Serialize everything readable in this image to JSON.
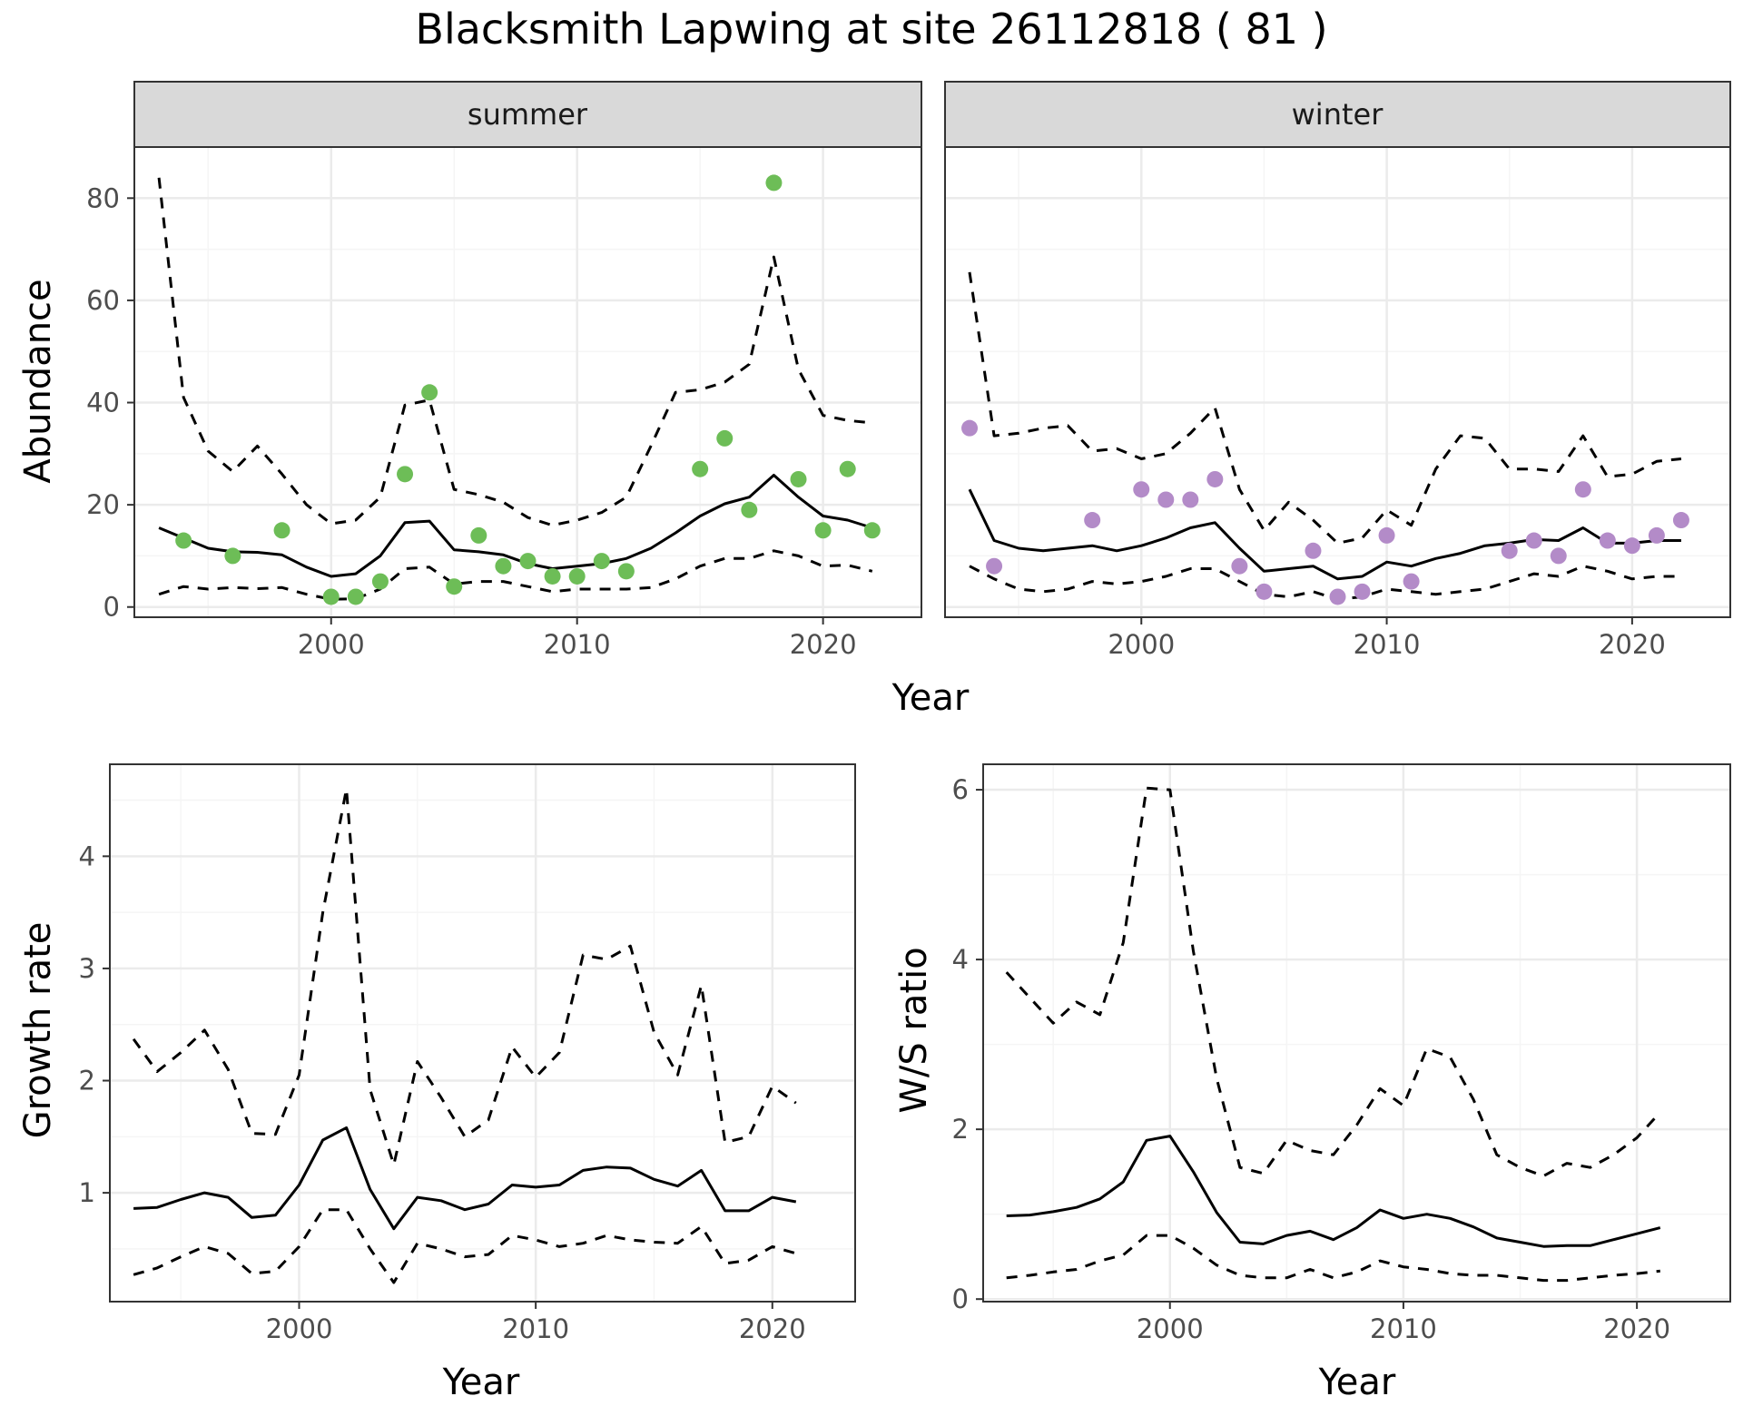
{
  "title": "Blacksmith Lapwing at site 26112818 ( 81 )",
  "colors": {
    "summer_points": "#6dbd57",
    "winter_points": "#b38bc8",
    "line": "#000000",
    "grid_major": "#ebebeb",
    "grid_minor": "#f5f5f5",
    "strip_fill": "#d9d9d9",
    "panel_border": "#333333"
  },
  "chart_data": [
    {
      "type": "line",
      "facet": "summer",
      "shared_xlabel": "Year",
      "ylabel": "Abundance",
      "xlim": [
        1992,
        2024
      ],
      "ylim": [
        -2,
        90
      ],
      "xticks": [
        2000,
        2010,
        2020
      ],
      "yticks": [
        0,
        20,
        40,
        60,
        80
      ],
      "grid": true,
      "series": [
        {
          "style": "solid",
          "x": [
            1993,
            1994,
            1995,
            1996,
            1997,
            1998,
            1999,
            2000,
            2001,
            2002,
            2003,
            2004,
            2005,
            2006,
            2007,
            2008,
            2009,
            2010,
            2011,
            2012,
            2013,
            2014,
            2015,
            2016,
            2017,
            2018,
            2019,
            2020,
            2021,
            2022
          ],
          "y": [
            15.5,
            13.5,
            11.5,
            10.8,
            10.7,
            10.2,
            7.8,
            6,
            6.5,
            10,
            16.5,
            16.8,
            11.2,
            10.8,
            10.2,
            8.5,
            7.5,
            8,
            8.5,
            9.5,
            11.5,
            14.5,
            17.8,
            20.2,
            21.5,
            25.8,
            21.5,
            17.8,
            17,
            15.5
          ]
        },
        {
          "style": "dashed",
          "x": [
            1993,
            1994,
            1995,
            1996,
            1997,
            1998,
            1999,
            2000,
            2001,
            2002,
            2003,
            2004,
            2005,
            2006,
            2007,
            2008,
            2009,
            2010,
            2011,
            2012,
            2013,
            2014,
            2015,
            2016,
            2017,
            2018,
            2019,
            2020,
            2021,
            2022
          ],
          "y": [
            84,
            41,
            30.5,
            26.5,
            31.5,
            26,
            20,
            16.3,
            17,
            21.5,
            39.5,
            40.5,
            23,
            22,
            20.5,
            17.5,
            16,
            17,
            18.5,
            21.5,
            31.5,
            42,
            42.5,
            44,
            47.5,
            68.5,
            46.5,
            37.5,
            36.5,
            36
          ]
        },
        {
          "style": "dashed",
          "x": [
            1993,
            1994,
            1995,
            1996,
            1997,
            1998,
            1999,
            2000,
            2001,
            2002,
            2003,
            2004,
            2005,
            2006,
            2007,
            2008,
            2009,
            2010,
            2011,
            2012,
            2013,
            2014,
            2015,
            2016,
            2017,
            2018,
            2019,
            2020,
            2021,
            2022
          ],
          "y": [
            2.5,
            4,
            3.5,
            3.8,
            3.6,
            3.8,
            2.5,
            1.5,
            1.6,
            3.5,
            7.5,
            7.8,
            4.5,
            5,
            5,
            4,
            3,
            3.5,
            3.5,
            3.5,
            3.8,
            5.5,
            8,
            9.5,
            9.5,
            11,
            10,
            8,
            8.2,
            7
          ]
        },
        {
          "style": "points",
          "x": [
            1994,
            1996,
            1998,
            2000,
            2001,
            2002,
            2003,
            2004,
            2005,
            2006,
            2007,
            2008,
            2009,
            2010,
            2011,
            2012,
            2015,
            2016,
            2017,
            2018,
            2019,
            2020,
            2021,
            2022
          ],
          "y": [
            13,
            10,
            15,
            2,
            2,
            5,
            26,
            42,
            4,
            14,
            8,
            9,
            6,
            6,
            9,
            7,
            27,
            33,
            19,
            83,
            25,
            15,
            27,
            15
          ]
        }
      ]
    },
    {
      "type": "line",
      "facet": "winter",
      "shared_xlabel": "Year",
      "ylabel": "",
      "xlim": [
        1992,
        2024
      ],
      "ylim": [
        -2,
        90
      ],
      "xticks": [
        2000,
        2010,
        2020
      ],
      "yticks": [
        0,
        20,
        40,
        60,
        80
      ],
      "grid": true,
      "series": [
        {
          "style": "solid",
          "x": [
            1993,
            1994,
            1995,
            1996,
            1997,
            1998,
            1999,
            2000,
            2001,
            2002,
            2003,
            2004,
            2005,
            2006,
            2007,
            2008,
            2009,
            2010,
            2011,
            2012,
            2013,
            2014,
            2015,
            2016,
            2017,
            2018,
            2019,
            2020,
            2021,
            2022
          ],
          "y": [
            23,
            13,
            11.5,
            11,
            11.5,
            12,
            11,
            12,
            13.5,
            15.5,
            16.5,
            11.5,
            7,
            7.5,
            8,
            5.5,
            6,
            8.8,
            8,
            9.5,
            10.5,
            12,
            12.5,
            13.2,
            13,
            15.5,
            12.5,
            12.5,
            13,
            13
          ]
        },
        {
          "style": "dashed",
          "x": [
            1993,
            1994,
            1995,
            1996,
            1997,
            1998,
            1999,
            2000,
            2001,
            2002,
            2003,
            2004,
            2005,
            2006,
            2007,
            2008,
            2009,
            2010,
            2011,
            2012,
            2013,
            2014,
            2015,
            2016,
            2017,
            2018,
            2019,
            2020,
            2021,
            2022
          ],
          "y": [
            65.5,
            33.5,
            34,
            35,
            35.5,
            30.5,
            31,
            29,
            30,
            34,
            39,
            23,
            15,
            20.5,
            17,
            12.5,
            13.5,
            19,
            16,
            27,
            33.5,
            33,
            27,
            27,
            26.5,
            33.5,
            25.5,
            26,
            28.5,
            29
          ]
        },
        {
          "style": "dashed",
          "x": [
            1993,
            1994,
            1995,
            1996,
            1997,
            1998,
            1999,
            2000,
            2001,
            2002,
            2003,
            2004,
            2005,
            2006,
            2007,
            2008,
            2009,
            2010,
            2011,
            2012,
            2013,
            2014,
            2015,
            2016,
            2017,
            2018,
            2019,
            2020,
            2021,
            2022
          ],
          "y": [
            8,
            5.5,
            3.5,
            3,
            3.5,
            5,
            4.5,
            5,
            6,
            7.5,
            7.5,
            5,
            2.5,
            2,
            3,
            1.5,
            2,
            3.5,
            3,
            2.5,
            3,
            3.5,
            5,
            6.5,
            6,
            8,
            7,
            5.5,
            6,
            6
          ]
        },
        {
          "style": "points",
          "x": [
            1993,
            1994,
            1998,
            2000,
            2001,
            2002,
            2003,
            2004,
            2005,
            2007,
            2008,
            2009,
            2010,
            2011,
            2015,
            2016,
            2017,
            2018,
            2019,
            2020,
            2021,
            2022
          ],
          "y": [
            35,
            8,
            17,
            23,
            21,
            21,
            25,
            8,
            3,
            11,
            2,
            3,
            14,
            5,
            11,
            13,
            10,
            23,
            13,
            12,
            14,
            17
          ]
        }
      ]
    },
    {
      "type": "line",
      "xlabel": "Year",
      "ylabel": "Growth rate",
      "xlim": [
        1992,
        2023.5
      ],
      "ylim": [
        0.03,
        4.82
      ],
      "xticks": [
        2000,
        2010,
        2020
      ],
      "yticks": [
        1,
        2,
        3,
        4
      ],
      "grid": true,
      "series": [
        {
          "style": "solid",
          "x": [
            1993,
            1994,
            1995,
            1996,
            1997,
            1998,
            1999,
            2000,
            2001,
            2002,
            2003,
            2004,
            2005,
            2006,
            2007,
            2008,
            2009,
            2010,
            2011,
            2012,
            2013,
            2014,
            2015,
            2016,
            2017,
            2018,
            2019,
            2020,
            2021
          ],
          "y": [
            0.86,
            0.87,
            0.94,
            1,
            0.96,
            0.78,
            0.8,
            1.07,
            1.47,
            1.58,
            1.03,
            0.68,
            0.96,
            0.93,
            0.85,
            0.9,
            1.07,
            1.05,
            1.07,
            1.2,
            1.23,
            1.22,
            1.12,
            1.06,
            1.2,
            0.84,
            0.84,
            0.96,
            0.92
          ]
        },
        {
          "style": "dashed",
          "x": [
            1993,
            1994,
            1995,
            1996,
            1997,
            1998,
            1999,
            2000,
            2001,
            2002,
            2003,
            2004,
            2005,
            2006,
            2007,
            2008,
            2009,
            2010,
            2011,
            2012,
            2013,
            2014,
            2015,
            2016,
            2017,
            2018,
            2019,
            2020,
            2021
          ],
          "y": [
            2.37,
            2.08,
            2.25,
            2.45,
            2.1,
            1.53,
            1.52,
            2.05,
            3.5,
            4.6,
            1.92,
            1.25,
            2.17,
            1.85,
            1.5,
            1.65,
            2.3,
            2.03,
            2.25,
            3.12,
            3.08,
            3.2,
            2.43,
            2.05,
            2.85,
            1.45,
            1.5,
            1.95,
            1.8
          ]
        },
        {
          "style": "dashed",
          "x": [
            1993,
            1994,
            1995,
            1996,
            1997,
            1998,
            1999,
            2000,
            2001,
            2002,
            2003,
            2004,
            2005,
            2006,
            2007,
            2008,
            2009,
            2010,
            2011,
            2012,
            2013,
            2014,
            2015,
            2016,
            2017,
            2018,
            2019,
            2020,
            2021
          ],
          "y": [
            0.27,
            0.33,
            0.43,
            0.52,
            0.46,
            0.28,
            0.3,
            0.52,
            0.85,
            0.85,
            0.5,
            0.2,
            0.55,
            0.5,
            0.43,
            0.45,
            0.62,
            0.58,
            0.52,
            0.55,
            0.62,
            0.58,
            0.56,
            0.55,
            0.7,
            0.37,
            0.4,
            0.52,
            0.46
          ]
        }
      ]
    },
    {
      "type": "line",
      "xlabel": "Year",
      "ylabel": "W/S ratio",
      "xlim": [
        1992,
        2024
      ],
      "ylim": [
        -0.03,
        6.3
      ],
      "xticks": [
        2000,
        2010,
        2020
      ],
      "yticks": [
        0,
        2,
        4,
        6
      ],
      "grid": true,
      "series": [
        {
          "style": "solid",
          "x": [
            1993,
            1994,
            1995,
            1996,
            1997,
            1998,
            1999,
            2000,
            2001,
            2002,
            2003,
            2004,
            2005,
            2006,
            2007,
            2008,
            2009,
            2010,
            2011,
            2012,
            2013,
            2014,
            2015,
            2016,
            2017,
            2018,
            2019,
            2020,
            2021
          ],
          "y": [
            0.98,
            0.99,
            1.03,
            1.08,
            1.18,
            1.38,
            1.87,
            1.92,
            1.5,
            1.02,
            0.67,
            0.65,
            0.75,
            0.8,
            0.7,
            0.84,
            1.05,
            0.95,
            1,
            0.95,
            0.85,
            0.72,
            0.67,
            0.62,
            0.63,
            0.63,
            0.7,
            0.77,
            0.84
          ]
        },
        {
          "style": "dashed",
          "x": [
            1993,
            1994,
            1995,
            1996,
            1997,
            1998,
            1999,
            2000,
            2001,
            2002,
            2003,
            2004,
            2005,
            2006,
            2007,
            2008,
            2009,
            2010,
            2011,
            2012,
            2013,
            2014,
            2015,
            2016,
            2017,
            2018,
            2019,
            2020,
            2021
          ],
          "y": [
            3.85,
            3.55,
            3.25,
            3.5,
            3.35,
            4.2,
            6.02,
            6,
            4.1,
            2.6,
            1.55,
            1.48,
            1.87,
            1.75,
            1.7,
            2.05,
            2.48,
            2.28,
            2.95,
            2.85,
            2.35,
            1.7,
            1.55,
            1.45,
            1.6,
            1.55,
            1.7,
            1.9,
            2.2
          ]
        },
        {
          "style": "dashed",
          "x": [
            1993,
            1994,
            1995,
            1996,
            1997,
            1998,
            1999,
            2000,
            2001,
            2002,
            2003,
            2004,
            2005,
            2006,
            2007,
            2008,
            2009,
            2010,
            2011,
            2012,
            2013,
            2014,
            2015,
            2016,
            2017,
            2018,
            2019,
            2020,
            2021
          ],
          "y": [
            0.25,
            0.28,
            0.32,
            0.35,
            0.45,
            0.52,
            0.75,
            0.75,
            0.6,
            0.4,
            0.28,
            0.25,
            0.25,
            0.35,
            0.25,
            0.32,
            0.45,
            0.38,
            0.35,
            0.3,
            0.28,
            0.28,
            0.25,
            0.22,
            0.22,
            0.25,
            0.28,
            0.3,
            0.33
          ]
        }
      ]
    }
  ]
}
